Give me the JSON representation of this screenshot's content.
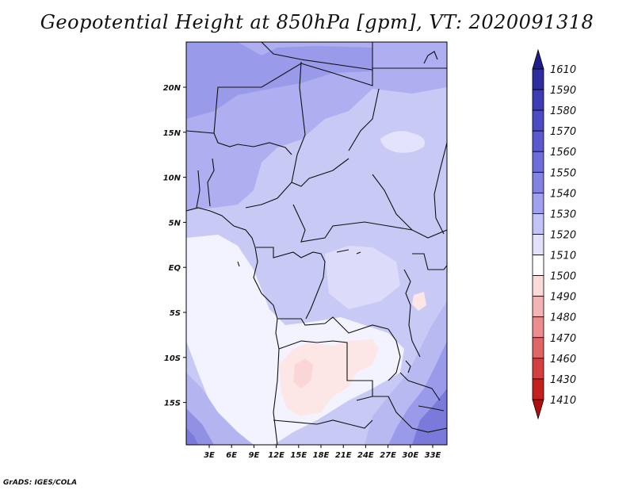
{
  "title": "Geopotential Height at 850hPa [gpm], VT: 2020091318",
  "credit": "GrADS: IGES/COLA",
  "map": {
    "variable": "Geopotential Height",
    "level": "850hPa",
    "units": "gpm",
    "valid_time": "2020091318",
    "lon_ticks": [
      "3E",
      "6E",
      "9E",
      "12E",
      "15E",
      "18E",
      "21E",
      "24E",
      "27E",
      "30E",
      "33E"
    ],
    "lat_ticks": [
      "20N",
      "15N",
      "10N",
      "5N",
      "EQ",
      "5S",
      "10S",
      "15S"
    ]
  },
  "colorbar": {
    "labels": [
      "1610",
      "1590",
      "1580",
      "1570",
      "1560",
      "1550",
      "1540",
      "1530",
      "1520",
      "1510",
      "1500",
      "1490",
      "1480",
      "1470",
      "1460",
      "1430",
      "1410"
    ],
    "colors": [
      "#1e1e8c",
      "#2d2da0",
      "#3c3cb4",
      "#4b4bc3",
      "#5a5ad0",
      "#6e6edb",
      "#8282e4",
      "#a0a0ee",
      "#c3c3f7",
      "#e1e1fc",
      "#ffffff",
      "#fbdada",
      "#f5b4b4",
      "#ec8c8c",
      "#e06666",
      "#d44040",
      "#c42020",
      "#b00f0f"
    ]
  }
}
